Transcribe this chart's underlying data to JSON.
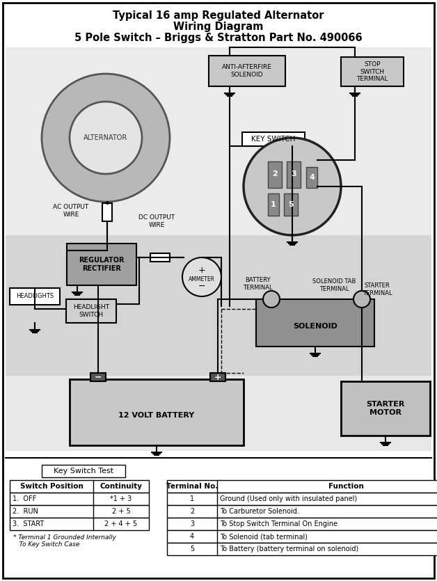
{
  "title_line1": "Typical 16 amp Regulated Alternator",
  "title_line2": "Wiring Diagram",
  "title_line3": "5 Pole Switch – Briggs & Stratton Part No. 490066",
  "table_left_rows": [
    [
      "1.  OFF",
      "*1 + 3"
    ],
    [
      "2.  RUN",
      "2 + 5"
    ],
    [
      "3.  START",
      "2 + 4 + 5"
    ]
  ],
  "table_right_rows": [
    [
      "1",
      "Ground (Used only with insulated panel)"
    ],
    [
      "2",
      "To Carburetor Solenoid."
    ],
    [
      "3",
      "To Stop Switch Terminal On Engine"
    ],
    [
      "4",
      "To Solenoid (tab terminal)"
    ],
    [
      "5",
      "To Battery (battery terminal on solenoid)"
    ]
  ],
  "footnote": "* Terminal 1 Grounded Internally\n   To Key Switch Case",
  "bg_top": "#f0f0f0",
  "bg_mid": "#d8d8d8",
  "bg_bot": "#e8e8e8"
}
